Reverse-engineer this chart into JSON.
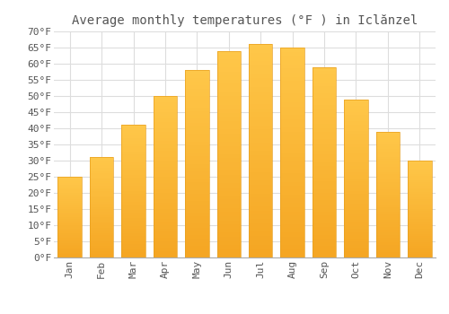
{
  "title": "Average monthly temperatures (°F ) in Iclănzel",
  "months": [
    "Jan",
    "Feb",
    "Mar",
    "Apr",
    "May",
    "Jun",
    "Jul",
    "Aug",
    "Sep",
    "Oct",
    "Nov",
    "Dec"
  ],
  "values": [
    25,
    31,
    41,
    50,
    58,
    64,
    66,
    65,
    59,
    49,
    39,
    30
  ],
  "bar_color_top": "#FFC84A",
  "bar_color_bottom": "#F5A623",
  "background_color": "#FFFFFF",
  "grid_color": "#DDDDDD",
  "text_color": "#555555",
  "ylim": [
    0,
    70
  ],
  "ytick_step": 5,
  "title_fontsize": 10,
  "tick_fontsize": 8,
  "font_family": "monospace"
}
